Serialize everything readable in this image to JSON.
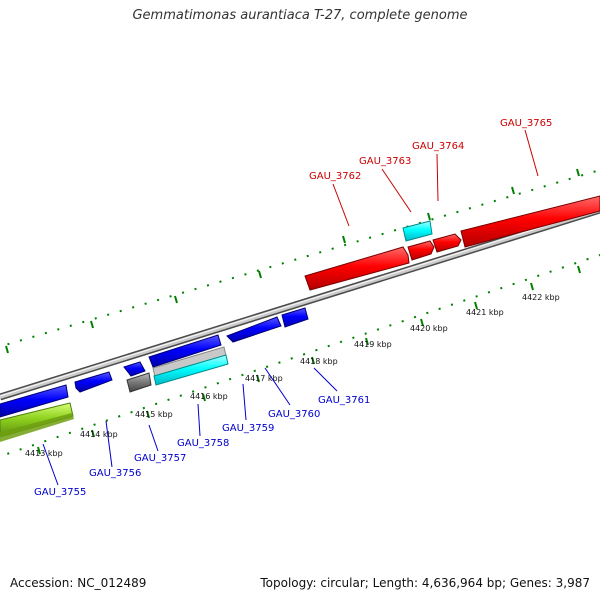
{
  "title": "Gemmatimonas aurantiaca T-27, complete genome",
  "footer": {
    "accession": "Accession: NC_012489",
    "summary": "Topology: circular; Length: 4,636,964 bp; Genes: 3,987"
  },
  "colors": {
    "forward_gene": "#ff0000",
    "reverse_gene": "#0000ff",
    "rna_gene": "#00ffff",
    "other_gene": "#777777",
    "highlight_gene": "#9acd32",
    "backbone": "#8c8c8c",
    "tick": "#008000",
    "forward_label": "#cc0000",
    "reverse_label": "#0000cc"
  },
  "scale": {
    "ticks": [
      "4413 kbp",
      "4414 kbp",
      "4415 kbp",
      "4416 kbp",
      "4417 kbp",
      "4418 kbp",
      "4419 kbp",
      "4420 kbp",
      "4421 kbp",
      "4422 kbp"
    ]
  },
  "genes": {
    "forward": [
      "GAU_3762",
      "GAU_3763",
      "GAU_3764",
      "GAU_3765"
    ],
    "reverse": [
      "GAU_3755",
      "GAU_3756",
      "GAU_3757",
      "GAU_3758",
      "GAU_3759",
      "GAU_3760",
      "GAU_3761"
    ]
  }
}
